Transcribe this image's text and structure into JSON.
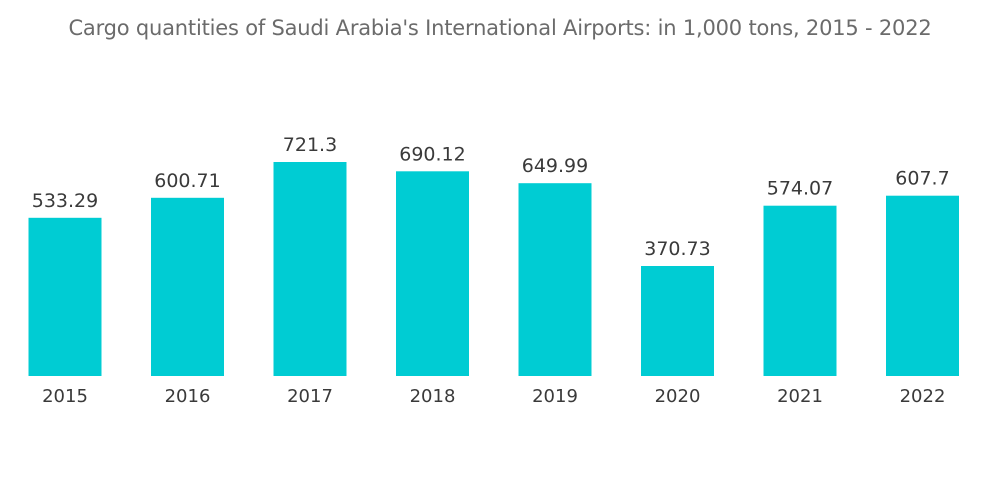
{
  "chart_data": {
    "type": "bar",
    "title": "Cargo quantities of Saudi Arabia's International Airports: in 1,000 tons, 2015 - 2022",
    "xlabel": "",
    "ylabel": "",
    "categories": [
      "2015",
      "2016",
      "2017",
      "2018",
      "2019",
      "2020",
      "2021",
      "2022"
    ],
    "values": [
      533.29,
      600.71,
      721.3,
      690.12,
      649.99,
      370.73,
      574.07,
      607.7
    ],
    "value_labels": [
      "533.29",
      "600.71",
      "721.3",
      "690.12",
      "649.99",
      "370.73",
      "574.07",
      "607.7"
    ],
    "ylim": [
      0,
      721.3
    ],
    "grid": false,
    "legend": "none",
    "colors": {
      "bar": "#00ccd3",
      "title": "#6b6b6b",
      "labels": "#3a3a3a"
    }
  }
}
